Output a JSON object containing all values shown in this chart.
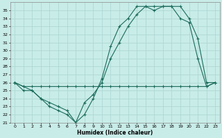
{
  "xlabel": "Humidex (Indice chaleur)",
  "bg_color": "#c8ece8",
  "grid_color": "#aad4d0",
  "line_color": "#1a6b5a",
  "xlim": [
    -0.5,
    23.5
  ],
  "ylim": [
    21,
    36
  ],
  "xticks": [
    0,
    1,
    2,
    3,
    4,
    5,
    6,
    7,
    8,
    9,
    10,
    11,
    12,
    13,
    14,
    15,
    16,
    17,
    18,
    19,
    20,
    21,
    22,
    23
  ],
  "yticks": [
    21,
    22,
    23,
    24,
    25,
    26,
    27,
    28,
    29,
    30,
    31,
    32,
    33,
    34,
    35
  ],
  "series": [
    {
      "x": [
        0,
        1,
        2,
        3,
        4,
        5,
        6,
        7,
        8,
        9,
        10,
        11,
        12,
        13,
        14,
        15,
        16,
        17,
        18,
        19,
        20,
        21,
        22,
        23
      ],
      "y": [
        26.0,
        25.5,
        25.0,
        24.0,
        23.5,
        23.0,
        22.5,
        21.0,
        23.5,
        24.5,
        26.0,
        29.0,
        31.0,
        33.0,
        34.5,
        35.5,
        35.0,
        35.5,
        35.5,
        35.5,
        34.0,
        31.5,
        26.0,
        26.0
      ]
    },
    {
      "x": [
        0,
        1,
        2,
        3,
        4,
        5,
        6,
        7,
        8,
        9,
        10,
        11,
        12,
        13,
        14,
        15,
        16,
        17,
        18,
        19,
        20,
        21,
        22,
        23
      ],
      "y": [
        26.0,
        25.0,
        25.0,
        24.0,
        23.0,
        22.5,
        22.0,
        21.0,
        22.0,
        24.0,
        26.5,
        30.5,
        33.0,
        34.0,
        35.5,
        35.5,
        35.5,
        35.5,
        35.5,
        34.0,
        33.5,
        29.0,
        25.5,
        26.0
      ]
    },
    {
      "x": [
        0,
        1,
        2,
        3,
        4,
        5,
        6,
        7,
        8,
        9,
        10,
        11,
        12,
        13,
        14,
        15,
        16,
        17,
        18,
        19,
        20,
        21,
        22,
        23
      ],
      "y": [
        26.0,
        25.5,
        25.5,
        25.5,
        25.5,
        25.5,
        25.5,
        25.5,
        25.5,
        25.5,
        25.5,
        25.5,
        25.5,
        25.5,
        25.5,
        25.5,
        25.5,
        25.5,
        25.5,
        25.5,
        25.5,
        25.5,
        25.5,
        26.0
      ]
    }
  ]
}
